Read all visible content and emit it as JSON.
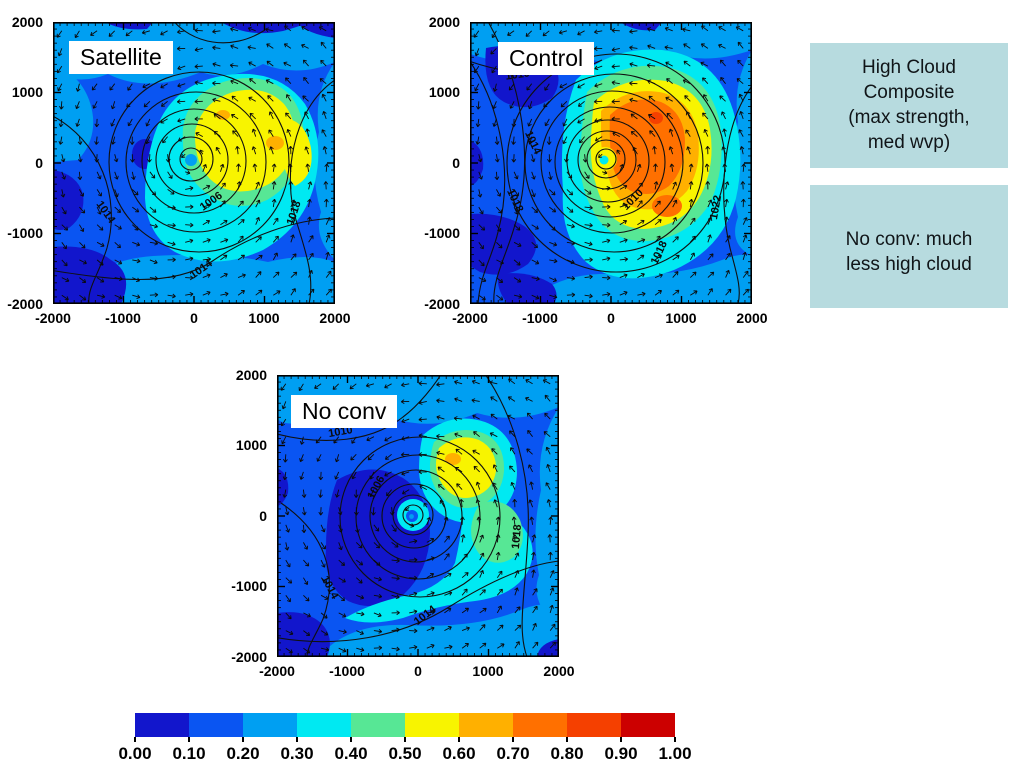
{
  "chart_data": [
    {
      "type": "filled_contour_map",
      "title": "Satellite",
      "shaded_field": "high cloud fraction",
      "shading_range": [
        0,
        1
      ],
      "xlim": [
        -2000,
        2000
      ],
      "ylim": [
        -2000,
        2000
      ],
      "x_tick_labels": [
        "-2000",
        "-1000",
        "0",
        "1000",
        "2000"
      ],
      "y_tick_labels": [
        "2000",
        "1000",
        "0",
        "-1000",
        "-2000"
      ],
      "overlays": [
        "surface pressure contours (hPa)",
        "wind vectors"
      ],
      "pressure_labels": [
        {
          "text": "1014",
          "x": 50,
          "y": 192,
          "rot": 55
        },
        {
          "text": "1006",
          "x": 160,
          "y": 182,
          "rot": -35
        },
        {
          "text": "1018",
          "x": 244,
          "y": 192,
          "rot": -72
        },
        {
          "text": "1014",
          "x": 150,
          "y": 250,
          "rot": -35
        }
      ],
      "peak_shading_approx": 0.7
    },
    {
      "type": "filled_contour_map",
      "title": "Control",
      "shaded_field": "high cloud fraction",
      "shading_range": [
        0,
        1
      ],
      "xlim": [
        -2000,
        2000
      ],
      "ylim": [
        -2000,
        2000
      ],
      "x_tick_labels": [
        "-2000",
        "-1000",
        "0",
        "1000",
        "2000"
      ],
      "y_tick_labels": [
        "2000",
        "1000",
        "0",
        "-1000",
        "-2000"
      ],
      "overlays": [
        "surface pressure contours (hPa)",
        "wind vectors"
      ],
      "pressure_labels": [
        {
          "text": "1010",
          "x": 48,
          "y": 56,
          "rot": -8
        },
        {
          "text": "1014",
          "x": 60,
          "y": 122,
          "rot": 65
        },
        {
          "text": "1018",
          "x": 42,
          "y": 180,
          "rot": 65
        },
        {
          "text": "1010",
          "x": 165,
          "y": 180,
          "rot": -45
        },
        {
          "text": "1018",
          "x": 192,
          "y": 232,
          "rot": -65
        },
        {
          "text": "1022",
          "x": 249,
          "y": 186,
          "rot": -80
        }
      ],
      "peak_shading_approx": 0.85
    },
    {
      "type": "filled_contour_map",
      "title": "No conv",
      "shaded_field": "high cloud fraction",
      "shading_range": [
        0,
        1
      ],
      "xlim": [
        -2000,
        2000
      ],
      "ylim": [
        -2000,
        2000
      ],
      "x_tick_labels": [
        "-2000",
        "-1000",
        "0",
        "1000",
        "2000"
      ],
      "y_tick_labels": [
        "2000",
        "1000",
        "0",
        "-1000",
        "-2000"
      ],
      "overlays": [
        "surface pressure contours (hPa)",
        "wind vectors"
      ],
      "pressure_labels": [
        {
          "text": "1010",
          "x": 64,
          "y": 60,
          "rot": -10
        },
        {
          "text": "1006",
          "x": 102,
          "y": 114,
          "rot": -62
        },
        {
          "text": "1014",
          "x": 50,
          "y": 214,
          "rot": 62
        },
        {
          "text": "1014",
          "x": 150,
          "y": 243,
          "rot": -38
        },
        {
          "text": "1018",
          "x": 243,
          "y": 162,
          "rot": -85
        }
      ],
      "peak_shading_approx": 0.65
    }
  ],
  "colorbar": {
    "type": "colorbar",
    "orientation": "horizontal",
    "range": [
      0,
      1
    ],
    "labels": [
      "0.00",
      "0.10",
      "0.20",
      "0.30",
      "0.40",
      "0.50",
      "0.60",
      "0.70",
      "0.80",
      "0.90",
      "1.00"
    ],
    "colors": [
      "#1216cc",
      "#0a55f2",
      "#009ff2",
      "#00e9f2",
      "#57e795",
      "#f8f400",
      "#ffb000",
      "#ff7000",
      "#f54000",
      "#cc0000"
    ]
  },
  "notes": [
    {
      "lines": [
        "High Cloud",
        "Composite",
        "(max strength,",
        "med wvp)"
      ],
      "bg": "#b7dbdf"
    },
    {
      "lines": [
        "No conv: much",
        "less high cloud"
      ],
      "bg": "#b7dbdf"
    }
  ]
}
